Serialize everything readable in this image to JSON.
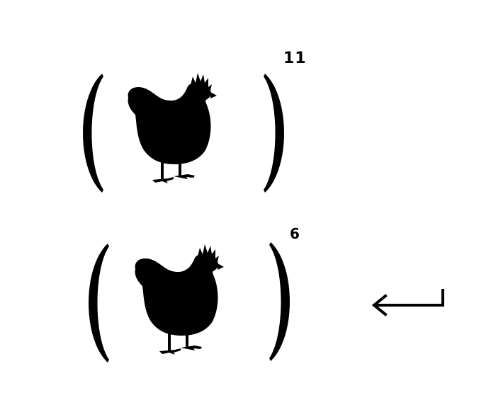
{
  "expressions": [
    {
      "subject": "chicken",
      "exponent": "11"
    },
    {
      "subject": "chicken",
      "exponent": "6"
    }
  ],
  "icons": {
    "chicken": "chicken-silhouette-icon",
    "arrow": "return-arrow-icon"
  },
  "colors": {
    "ink": "#000000",
    "background": "#ffffff"
  }
}
